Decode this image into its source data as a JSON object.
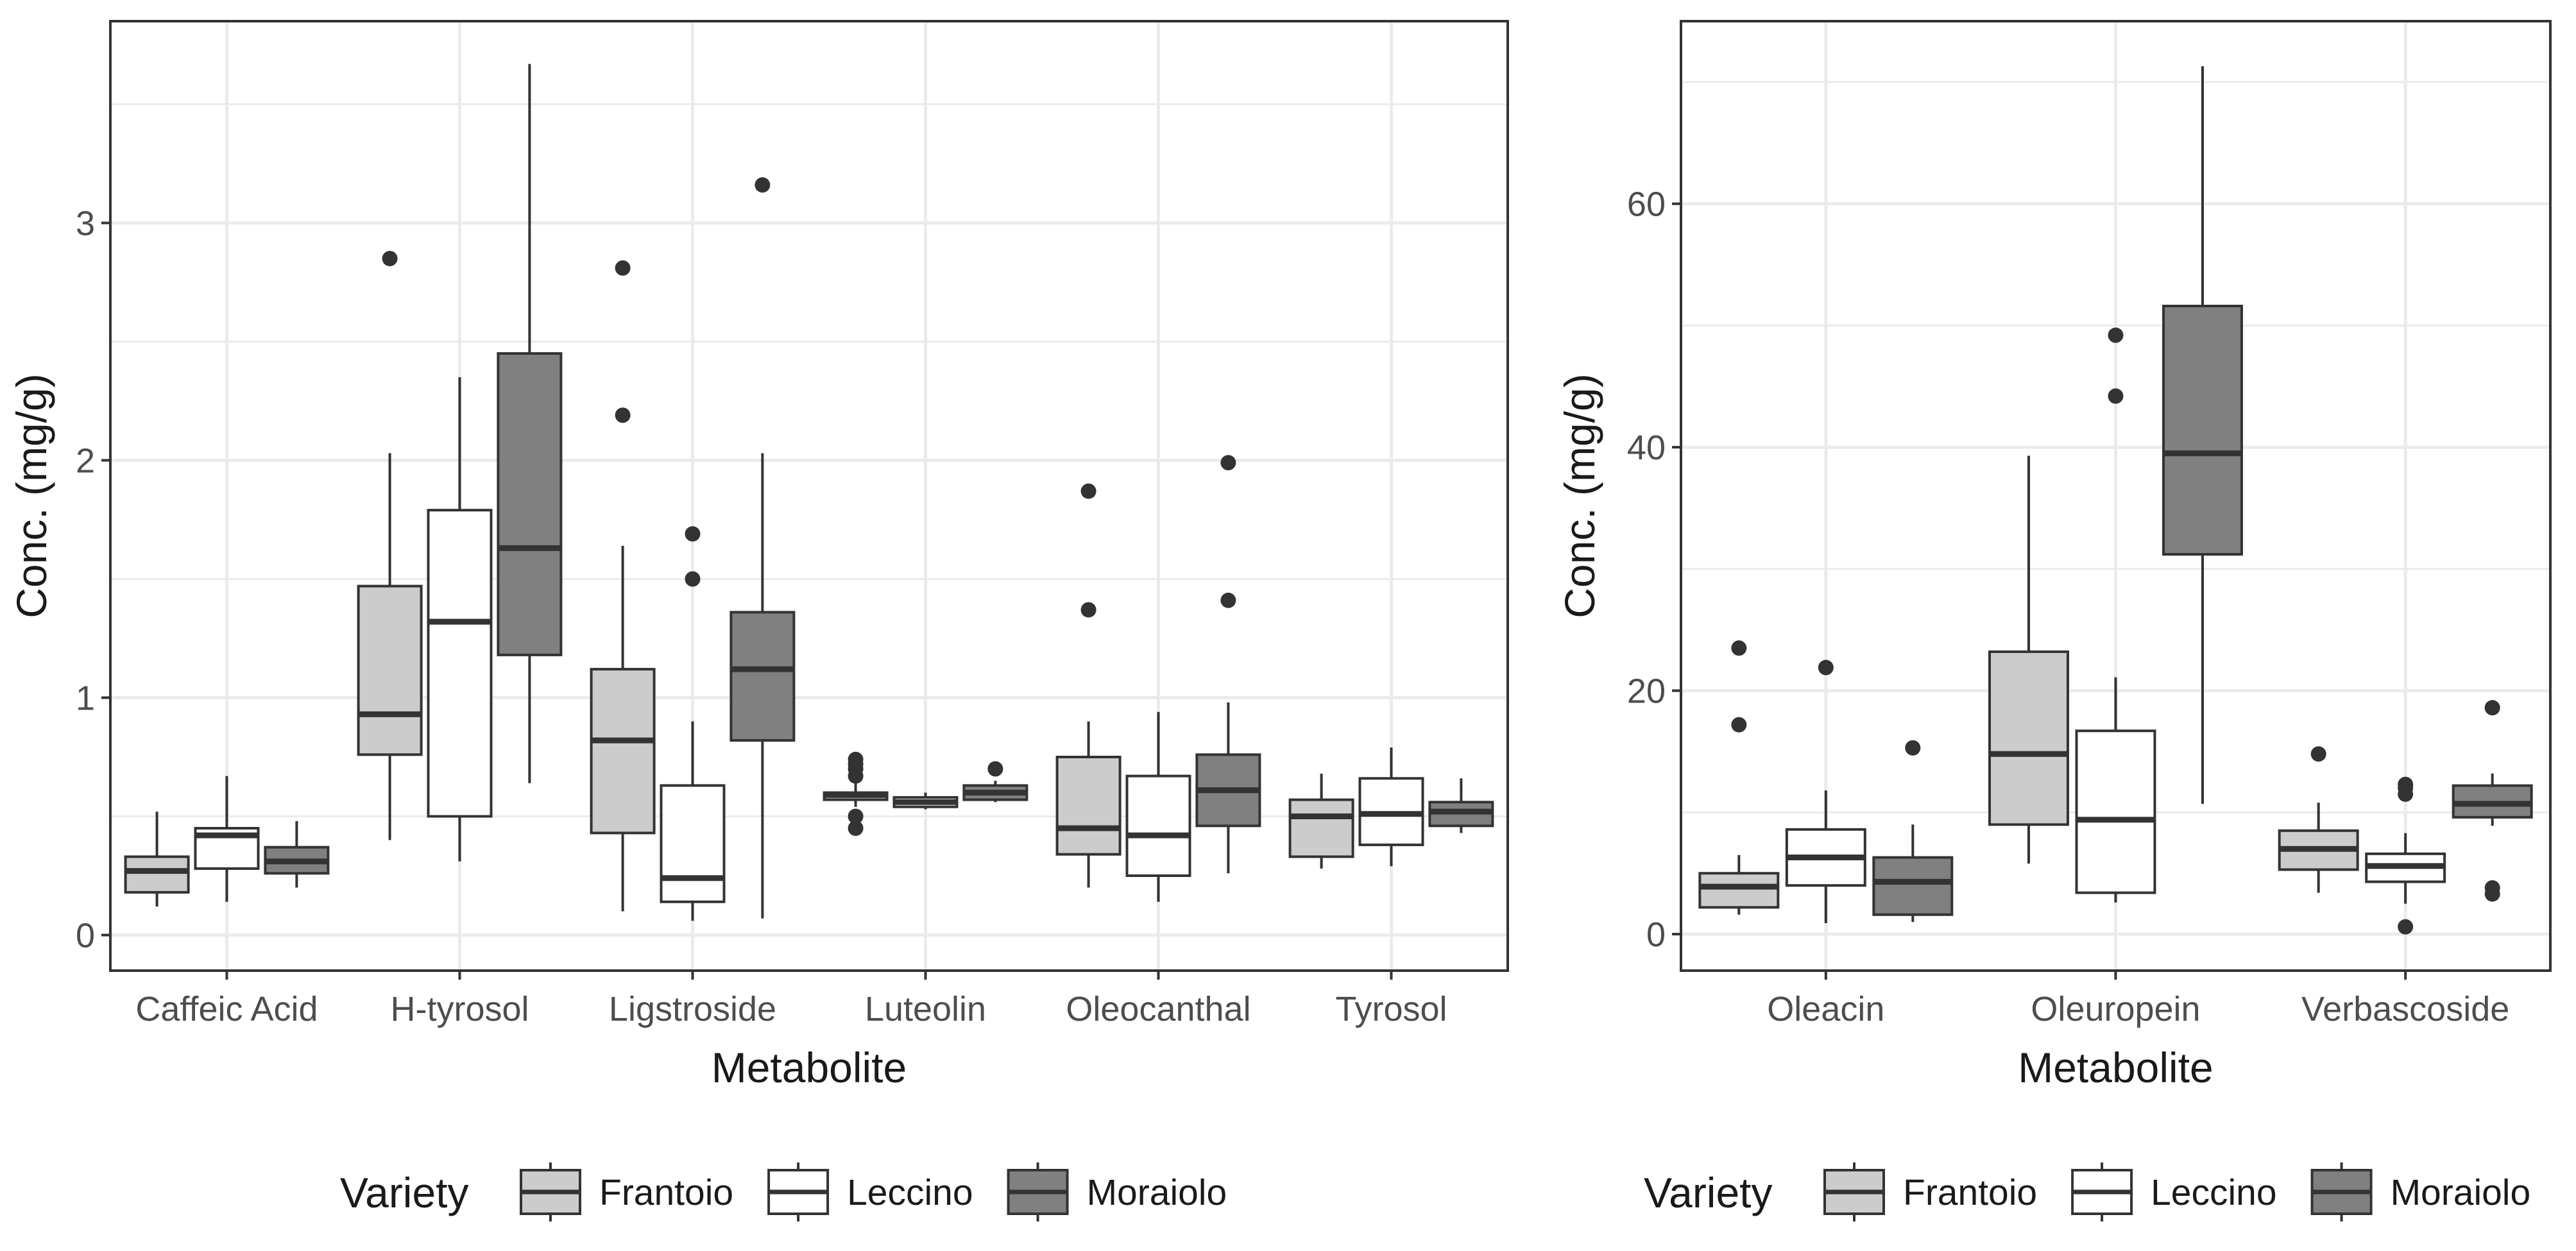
{
  "colors": {
    "Frantoio": "#cccccc",
    "Leccino": "#ffffff",
    "Moraiolo": "#808080",
    "outline": "#333333",
    "grid": "#ebebeb",
    "panel_border": "#333333"
  },
  "chart_data": [
    {
      "type": "boxplot",
      "xlabel": "Metabolite",
      "ylabel": "Conc. (mg/g)",
      "ylim": [
        -0.15,
        3.85
      ],
      "yticks": [
        0,
        1,
        2,
        3
      ],
      "ytick_labels": [
        "0",
        "1",
        "2",
        "3"
      ],
      "grid": true,
      "legend": {
        "title": "Variety",
        "position": "bottom",
        "entries": [
          {
            "name": "Frantoio"
          },
          {
            "name": "Leccino"
          },
          {
            "name": "Moraiolo"
          }
        ]
      },
      "categories": [
        "Caffeic Acid",
        "H-tyrosol",
        "Ligstroside",
        "Luteolin",
        "Oleocanthal",
        "Tyrosol"
      ],
      "series": [
        {
          "name": "Frantoio",
          "boxes": [
            {
              "low": 0.12,
              "q1": 0.18,
              "median": 0.27,
              "q3": 0.33,
              "high": 0.52,
              "outliers": []
            },
            {
              "low": 0.4,
              "q1": 0.76,
              "median": 0.93,
              "q3": 1.47,
              "high": 2.03,
              "outliers": [
                2.85
              ]
            },
            {
              "low": 0.1,
              "q1": 0.43,
              "median": 0.82,
              "q3": 1.12,
              "high": 1.64,
              "outliers": [
                2.19,
                2.81
              ]
            },
            {
              "low": 0.54,
              "q1": 0.57,
              "median": 0.59,
              "q3": 0.6,
              "high": 0.64,
              "outliers": [
                0.45,
                0.5,
                0.67,
                0.7,
                0.72,
                0.74
              ]
            },
            {
              "low": 0.2,
              "q1": 0.34,
              "median": 0.45,
              "q3": 0.75,
              "high": 0.9,
              "outliers": [
                1.37,
                1.87
              ]
            },
            {
              "low": 0.28,
              "q1": 0.33,
              "median": 0.5,
              "q3": 0.57,
              "high": 0.68,
              "outliers": []
            }
          ]
        },
        {
          "name": "Leccino",
          "boxes": [
            {
              "low": 0.14,
              "q1": 0.28,
              "median": 0.42,
              "q3": 0.45,
              "high": 0.67,
              "outliers": []
            },
            {
              "low": 0.31,
              "q1": 0.5,
              "median": 1.32,
              "q3": 1.79,
              "high": 2.35,
              "outliers": []
            },
            {
              "low": 0.06,
              "q1": 0.14,
              "median": 0.24,
              "q3": 0.63,
              "high": 0.9,
              "outliers": [
                1.5,
                1.69
              ]
            },
            {
              "low": 0.53,
              "q1": 0.54,
              "median": 0.56,
              "q3": 0.58,
              "high": 0.6,
              "outliers": []
            },
            {
              "low": 0.14,
              "q1": 0.25,
              "median": 0.42,
              "q3": 0.67,
              "high": 0.94,
              "outliers": []
            },
            {
              "low": 0.29,
              "q1": 0.38,
              "median": 0.51,
              "q3": 0.66,
              "high": 0.79,
              "outliers": []
            }
          ]
        },
        {
          "name": "Moraiolo",
          "boxes": [
            {
              "low": 0.2,
              "q1": 0.26,
              "median": 0.31,
              "q3": 0.37,
              "high": 0.48,
              "outliers": []
            },
            {
              "low": 0.64,
              "q1": 1.18,
              "median": 1.63,
              "q3": 2.45,
              "high": 3.67,
              "outliers": []
            },
            {
              "low": 0.07,
              "q1": 0.82,
              "median": 1.12,
              "q3": 1.36,
              "high": 2.03,
              "outliers": [
                3.16
              ]
            },
            {
              "low": 0.56,
              "q1": 0.57,
              "median": 0.6,
              "q3": 0.63,
              "high": 0.65,
              "outliers": [
                0.7
              ]
            },
            {
              "low": 0.26,
              "q1": 0.46,
              "median": 0.61,
              "q3": 0.76,
              "high": 0.98,
              "outliers": [
                1.41,
                1.99
              ]
            },
            {
              "low": 0.43,
              "q1": 0.46,
              "median": 0.52,
              "q3": 0.56,
              "high": 0.66,
              "outliers": []
            }
          ]
        }
      ]
    },
    {
      "type": "boxplot",
      "xlabel": "Metabolite",
      "ylabel": "Conc. (mg/g)",
      "ylim": [
        -3,
        75
      ],
      "yticks": [
        0,
        20,
        40,
        60
      ],
      "ytick_labels": [
        "0",
        "20",
        "40",
        "60"
      ],
      "grid": true,
      "legend": {
        "title": "Variety",
        "position": "bottom",
        "entries": [
          {
            "name": "Frantoio"
          },
          {
            "name": "Leccino"
          },
          {
            "name": "Moraiolo"
          }
        ]
      },
      "categories": [
        "Oleacin",
        "Oleuropein",
        "Verbascoside"
      ],
      "series": [
        {
          "name": "Frantoio",
          "boxes": [
            {
              "low": 1.6,
              "q1": 2.2,
              "median": 3.9,
              "q3": 5.0,
              "high": 6.5,
              "outliers": [
                17.2,
                23.5
              ]
            },
            {
              "low": 5.8,
              "q1": 9.0,
              "median": 14.8,
              "q3": 23.2,
              "high": 39.3,
              "outliers": []
            },
            {
              "low": 3.4,
              "q1": 5.3,
              "median": 7.0,
              "q3": 8.5,
              "high": 10.8,
              "outliers": [
                14.8
              ]
            }
          ]
        },
        {
          "name": "Leccino",
          "boxes": [
            {
              "low": 0.9,
              "q1": 4.0,
              "median": 6.3,
              "q3": 8.6,
              "high": 11.8,
              "outliers": [
                21.9
              ]
            },
            {
              "low": 2.6,
              "q1": 3.4,
              "median": 9.4,
              "q3": 16.7,
              "high": 21.1,
              "outliers": [
                44.2,
                49.2
              ]
            },
            {
              "low": 2.5,
              "q1": 4.3,
              "median": 5.6,
              "q3": 6.6,
              "high": 8.3,
              "outliers": [
                0.6,
                11.5,
                12.0,
                12.3
              ]
            }
          ]
        },
        {
          "name": "Moraiolo",
          "boxes": [
            {
              "low": 1.0,
              "q1": 1.6,
              "median": 4.3,
              "q3": 6.3,
              "high": 9.0,
              "outliers": [
                15.3
              ]
            },
            {
              "low": 10.7,
              "q1": 31.2,
              "median": 39.5,
              "q3": 51.6,
              "high": 71.3,
              "outliers": []
            },
            {
              "low": 8.9,
              "q1": 9.6,
              "median": 10.7,
              "q3": 12.2,
              "high": 13.2,
              "outliers": [
                3.3,
                3.8,
                18.6
              ]
            }
          ]
        }
      ]
    }
  ]
}
